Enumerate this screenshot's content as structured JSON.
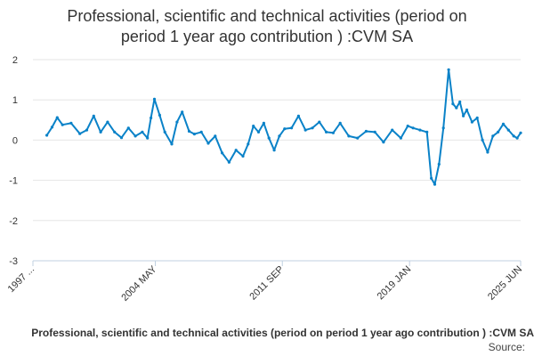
{
  "chart_data": {
    "type": "line",
    "title_lines": [
      "Professional, scientific and technical activities (period on",
      "period 1 year ago contribution ) :CVM SA"
    ],
    "ylim": [
      -3,
      2
    ],
    "yticks": [
      2,
      1,
      0,
      -1,
      -2,
      -3
    ],
    "ytick_labels": [
      "2",
      "1",
      "0",
      "-1",
      "-2",
      "-3"
    ],
    "xlim": [
      1997.3,
      2025.4
    ],
    "xticks": [
      1997.3,
      2004.35,
      2011.67,
      2019.0,
      2025.4
    ],
    "xtick_labels": [
      "1997 ...",
      "2004 MAY",
      "2011 SEP",
      "2019 JAN",
      "2025 JUN"
    ],
    "series": [
      {
        "name": "Professional, scientific and technical activities (period on period 1 year ago contribution ) :CVM SA",
        "color": "#0a82c8",
        "x": [
          1998.1,
          1998.4,
          1998.7,
          1999.0,
          1999.5,
          2000.0,
          2000.4,
          2000.8,
          2001.2,
          2001.6,
          2002.0,
          2002.4,
          2002.8,
          2003.2,
          2003.6,
          2003.9,
          2004.1,
          2004.3,
          2004.6,
          2004.9,
          2005.3,
          2005.6,
          2005.9,
          2006.3,
          2006.6,
          2007.0,
          2007.4,
          2007.8,
          2008.2,
          2008.6,
          2009.0,
          2009.4,
          2009.7,
          2010.0,
          2010.3,
          2010.6,
          2010.9,
          2011.2,
          2011.5,
          2011.8,
          2012.2,
          2012.6,
          2013.0,
          2013.4,
          2013.8,
          2014.2,
          2014.6,
          2015.0,
          2015.5,
          2016.0,
          2016.5,
          2017.0,
          2017.5,
          2018.0,
          2018.5,
          2018.9,
          2019.2,
          2019.6,
          2020.0,
          2020.25,
          2020.45,
          2020.7,
          2020.95,
          2021.25,
          2021.5,
          2021.7,
          2021.9,
          2022.1,
          2022.3,
          2022.6,
          2022.9,
          2023.2,
          2023.5,
          2023.8,
          2024.1,
          2024.4,
          2024.7,
          2025.0,
          2025.2,
          2025.4
        ],
        "values": [
          0.12,
          0.32,
          0.56,
          0.38,
          0.42,
          0.16,
          0.25,
          0.6,
          0.2,
          0.45,
          0.2,
          0.06,
          0.3,
          0.1,
          0.2,
          0.05,
          0.55,
          1.02,
          0.62,
          0.2,
          -0.1,
          0.45,
          0.7,
          0.22,
          0.15,
          0.2,
          -0.08,
          0.1,
          -0.32,
          -0.55,
          -0.25,
          -0.4,
          -0.1,
          0.35,
          0.2,
          0.42,
          0.05,
          -0.25,
          0.1,
          0.28,
          0.3,
          0.6,
          0.25,
          0.3,
          0.45,
          0.2,
          0.18,
          0.42,
          0.1,
          0.05,
          0.22,
          0.2,
          -0.05,
          0.25,
          0.05,
          0.35,
          0.3,
          0.25,
          0.2,
          -0.95,
          -1.1,
          -0.6,
          0.3,
          1.75,
          0.9,
          0.8,
          0.95,
          0.6,
          0.75,
          0.45,
          0.55,
          0.0,
          -0.3,
          0.1,
          0.2,
          0.4,
          0.25,
          0.1,
          0.05,
          0.18
        ]
      }
    ],
    "legend_label": "Professional, scientific and technical activities (period on period 1 year ago contribution ) :CVM SA",
    "source_label": "Source:",
    "grid": true
  }
}
